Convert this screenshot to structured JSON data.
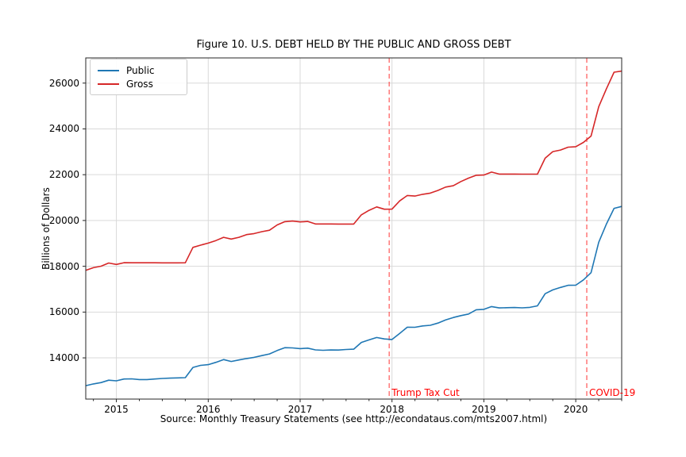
{
  "chart_data": {
    "type": "line",
    "title": "Figure 10. U.S. DEBT HELD BY THE PUBLIC AND GROSS DEBT",
    "ylabel": "Billions of Dollars",
    "caption": "Source: Monthly Treasury Statements (see http://econdataus.com/mts2007.html)",
    "grid": true,
    "legend_position": "upper left",
    "grid_color": "#d9d9d9",
    "spine_color": "#262626",
    "x_ticks": [
      2015,
      2016,
      2017,
      2018,
      2019,
      2020
    ],
    "y_ticks": [
      14000,
      16000,
      18000,
      20000,
      22000,
      24000,
      26000
    ],
    "xlim": [
      2014.6667,
      2020.5
    ],
    "ylim": [
      12200,
      27100
    ],
    "x_months": [
      "2014-09",
      "2014-10",
      "2014-11",
      "2014-12",
      "2015-01",
      "2015-02",
      "2015-03",
      "2015-04",
      "2015-05",
      "2015-06",
      "2015-07",
      "2015-08",
      "2015-09",
      "2015-10",
      "2015-11",
      "2015-12",
      "2016-01",
      "2016-02",
      "2016-03",
      "2016-04",
      "2016-05",
      "2016-06",
      "2016-07",
      "2016-08",
      "2016-09",
      "2016-10",
      "2016-11",
      "2016-12",
      "2017-01",
      "2017-02",
      "2017-03",
      "2017-04",
      "2017-05",
      "2017-06",
      "2017-07",
      "2017-08",
      "2017-09",
      "2017-10",
      "2017-11",
      "2017-12",
      "2018-01",
      "2018-02",
      "2018-03",
      "2018-04",
      "2018-05",
      "2018-06",
      "2018-07",
      "2018-08",
      "2018-09",
      "2018-10",
      "2018-11",
      "2018-12",
      "2019-01",
      "2019-02",
      "2019-03",
      "2019-04",
      "2019-05",
      "2019-06",
      "2019-07",
      "2019-08",
      "2019-09",
      "2019-10",
      "2019-11",
      "2019-12",
      "2020-01",
      "2020-02",
      "2020-03",
      "2020-04",
      "2020-05",
      "2020-06",
      "2020-07"
    ],
    "series": [
      {
        "name": "Public",
        "color": "#1f77b4",
        "values": [
          12785,
          12861,
          12922,
          13024,
          12998,
          13077,
          13084,
          13053,
          13053,
          13077,
          13102,
          13116,
          13124,
          13137,
          13581,
          13673,
          13703,
          13805,
          13925,
          13841,
          13909,
          13972,
          14023,
          14099,
          14173,
          14320,
          14444,
          14434,
          14404,
          14423,
          14349,
          14330,
          14344,
          14343,
          14364,
          14380,
          14673,
          14786,
          14888,
          14825,
          14801,
          15068,
          15339,
          15335,
          15394,
          15421,
          15519,
          15655,
          15761,
          15847,
          15913,
          16100,
          16118,
          16241,
          16181,
          16193,
          16200,
          16186,
          16204,
          16270,
          16802,
          16969,
          17076,
          17169,
          17173,
          17404,
          17720,
          19052,
          19842,
          20530,
          20614
        ]
      },
      {
        "name": "Gross",
        "color": "#d62728",
        "values": [
          17824,
          17937,
          18005,
          18141,
          18082,
          18155,
          18152,
          18152,
          18153,
          18152,
          18151,
          18151,
          18151,
          18153,
          18827,
          18922,
          19012,
          19125,
          19265,
          19188,
          19265,
          19382,
          19427,
          19510,
          19573,
          19806,
          19948,
          19977,
          19937,
          19959,
          19846,
          19846,
          19846,
          19845,
          19845,
          19845,
          20245,
          20442,
          20591,
          20493,
          20494,
          20856,
          21090,
          21068,
          21145,
          21195,
          21313,
          21459,
          21516,
          21703,
          21850,
          21974,
          21984,
          22115,
          22028,
          22027,
          22026,
          22023,
          22022,
          22023,
          22719,
          23008,
          23076,
          23201,
          23224,
          23409,
          23687,
          24974,
          25746,
          26477,
          26525
        ]
      }
    ],
    "vlines": [
      {
        "x": 2017.97,
        "label": "Trump Tax Cut",
        "line_color": "rgba(255,0,0,0.5)",
        "label_color": "#ff0000"
      },
      {
        "x": 2020.12,
        "label": "COVID-19",
        "line_color": "rgba(255,0,0,0.5)",
        "label_color": "#ff0000"
      }
    ]
  }
}
